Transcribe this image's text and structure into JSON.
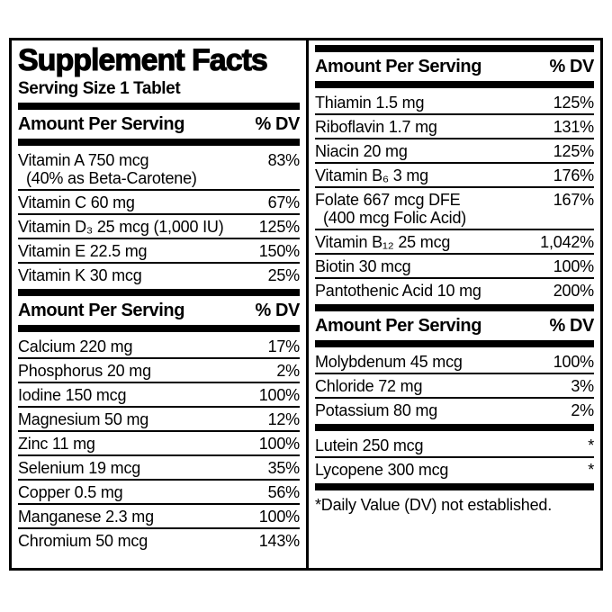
{
  "label": {
    "title": "Supplement Facts",
    "serving_size": "Serving Size 1 Tablet",
    "header": {
      "amount": "Amount Per Serving",
      "dv": "% DV"
    },
    "footnote": "*Daily Value (DV) not established.",
    "colors": {
      "text": "#000000",
      "background": "#ffffff",
      "rule": "#000000"
    },
    "left_sections": [
      {
        "has_header": true,
        "rows": [
          {
            "name": "Vitamin A 750 mcg",
            "sub": "(40% as Beta-Carotene)",
            "dv": "83%"
          },
          {
            "name": "Vitamin C 60 mg",
            "dv": "67%"
          },
          {
            "name": "Vitamin D₃ 25 mcg (1,000 IU)",
            "dv": "125%"
          },
          {
            "name": "Vitamin E 22.5 mg",
            "dv": "150%"
          },
          {
            "name": "Vitamin K 30 mcg",
            "dv": "25%"
          }
        ]
      },
      {
        "has_header": true,
        "rows": [
          {
            "name": "Calcium 220 mg",
            "dv": "17%"
          },
          {
            "name": "Phosphorus 20 mg",
            "dv": "2%"
          },
          {
            "name": "Iodine 150 mcg",
            "dv": "100%"
          },
          {
            "name": "Magnesium 50 mg",
            "dv": "12%"
          },
          {
            "name": "Zinc 11 mg",
            "dv": "100%"
          },
          {
            "name": "Selenium 19 mcg",
            "dv": "35%"
          },
          {
            "name": "Copper 0.5 mg",
            "dv": "56%"
          },
          {
            "name": "Manganese 2.3 mg",
            "dv": "100%"
          },
          {
            "name": "Chromium 50 mcg",
            "dv": "143%"
          }
        ]
      }
    ],
    "right_sections": [
      {
        "has_header": true,
        "rows": [
          {
            "name": "Thiamin 1.5 mg",
            "dv": "125%"
          },
          {
            "name": "Riboflavin 1.7 mg",
            "dv": "131%"
          },
          {
            "name": "Niacin 20 mg",
            "dv": "125%"
          },
          {
            "name": "Vitamin B₆ 3 mg",
            "dv": "176%"
          },
          {
            "name": "Folate 667 mcg DFE",
            "sub": "(400 mcg Folic Acid)",
            "dv": "167%"
          },
          {
            "name": "Vitamin B₁₂ 25 mcg",
            "dv": "1,042%"
          },
          {
            "name": "Biotin 30 mcg",
            "dv": "100%"
          },
          {
            "name": "Pantothenic Acid 10 mg",
            "dv": "200%"
          }
        ]
      },
      {
        "has_header": true,
        "rows": [
          {
            "name": "Molybdenum 45 mcg",
            "dv": "100%"
          },
          {
            "name": "Chloride 72 mg",
            "dv": "3%"
          },
          {
            "name": "Potassium 80 mg",
            "dv": "2%"
          }
        ]
      },
      {
        "has_header": false,
        "rows": [
          {
            "name": "Lutein 250 mcg",
            "dv": "*"
          },
          {
            "name": "Lycopene 300 mcg",
            "dv": "*"
          }
        ]
      }
    ]
  }
}
